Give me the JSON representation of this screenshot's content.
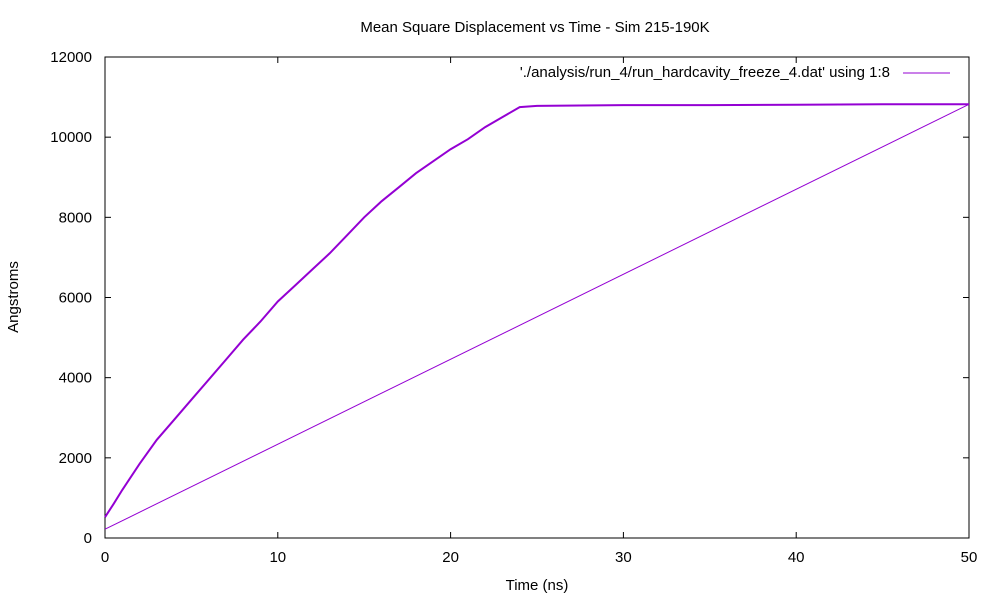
{
  "chart_data": {
    "type": "line",
    "title": "Mean Square Displacement vs Time - Sim 215-190K",
    "xlabel": "Time (ns)",
    "ylabel": "Angstroms",
    "xlim": [
      0,
      50
    ],
    "ylim": [
      0,
      12000
    ],
    "xticks": [
      0,
      10,
      20,
      30,
      40,
      50
    ],
    "yticks": [
      0,
      2000,
      4000,
      6000,
      8000,
      10000,
      12000
    ],
    "grid": false,
    "legend_position": "top-right",
    "series": [
      {
        "name": "'./analysis/run_4/run_hardcavity_freeze_4.dat' using 1:8",
        "color": "#9400d3",
        "points": [
          [
            0,
            520
          ],
          [
            0.5,
            850
          ],
          [
            1,
            1200
          ],
          [
            2,
            1850
          ],
          [
            3,
            2450
          ],
          [
            4,
            2950
          ],
          [
            5,
            3450
          ],
          [
            6,
            3950
          ],
          [
            7,
            4450
          ],
          [
            8,
            4950
          ],
          [
            9,
            5400
          ],
          [
            10,
            5900
          ],
          [
            11,
            6300
          ],
          [
            12,
            6700
          ],
          [
            13,
            7100
          ],
          [
            14,
            7550
          ],
          [
            15,
            8000
          ],
          [
            16,
            8400
          ],
          [
            17,
            8750
          ],
          [
            18,
            9100
          ],
          [
            19,
            9400
          ],
          [
            20,
            9700
          ],
          [
            21,
            9950
          ],
          [
            22,
            10250
          ],
          [
            23,
            10500
          ],
          [
            24,
            10750
          ],
          [
            25,
            10780
          ],
          [
            30,
            10800
          ],
          [
            35,
            10800
          ],
          [
            40,
            10810
          ],
          [
            45,
            10820
          ],
          [
            50,
            10820
          ]
        ]
      },
      {
        "name": "",
        "color": "#9400d3",
        "points": [
          [
            0,
            220
          ],
          [
            50,
            10820
          ]
        ]
      }
    ]
  }
}
